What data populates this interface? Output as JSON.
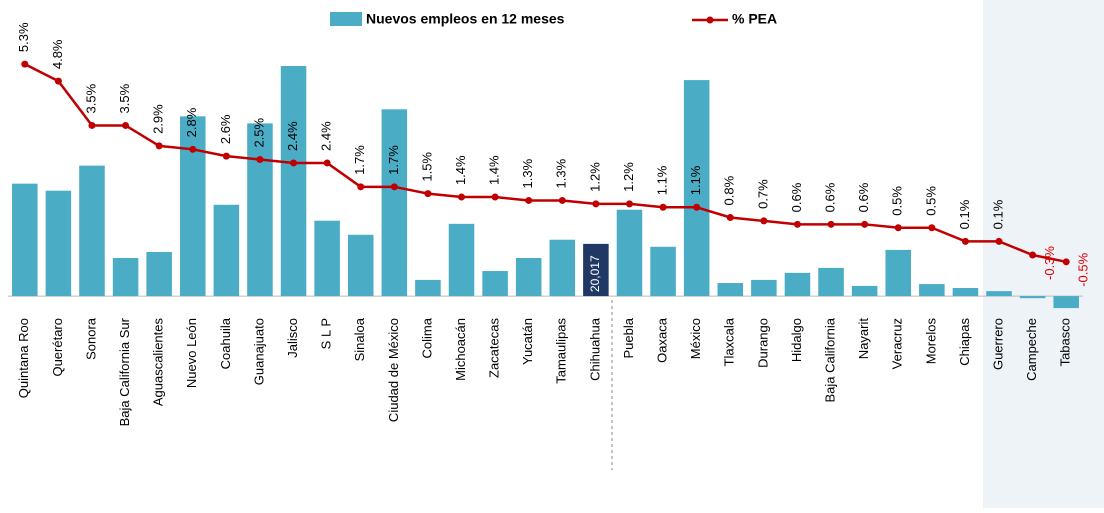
{
  "chart_data": {
    "type": "bar-line",
    "categories": [
      "Quintana Roo",
      "Querétaro",
      "Sonora",
      "Baja California Sur",
      "Aguascalientes",
      "Nuevo León",
      "Coahuila",
      "Guanajuato",
      "Jalisco",
      "S L P",
      "Sinaloa",
      "Ciudad de México",
      "Colima",
      "Michoacán",
      "Zacatecas",
      "Yucatán",
      "Tamaulipas",
      "Chihuahua",
      "Puebla",
      "Oaxaca",
      "México",
      "Tlaxcala",
      "Durango",
      "Hidalgo",
      "Baja California",
      "Nayarit",
      "Veracruz",
      "Morelos",
      "Chiapas",
      "Guerrero",
      "Campeche",
      "Tabasco"
    ],
    "series": [
      {
        "name": "Nuevos empleos en 12 meses",
        "color": "#4bacc6",
        "axis": "y",
        "values": [
          43100,
          40400,
          50000,
          14600,
          16900,
          68900,
          35000,
          66200,
          88200,
          28900,
          23500,
          71600,
          6200,
          27700,
          9600,
          14600,
          21600,
          20017,
          33100,
          18900,
          82800,
          5000,
          6200,
          8900,
          10800,
          3900,
          17700,
          4600,
          3100,
          1900,
          -800,
          -4600
        ],
        "value_labels": [
          null,
          null,
          null,
          null,
          null,
          null,
          null,
          null,
          null,
          null,
          null,
          null,
          null,
          null,
          null,
          null,
          null,
          "20,017",
          null,
          null,
          null,
          null,
          null,
          null,
          null,
          null,
          null,
          null,
          null,
          null,
          null,
          null
        ],
        "highlight_category": "Chihuahua",
        "highlight_color": "#1f3864"
      },
      {
        "name": "% PEA",
        "color": "#c00000",
        "axis": "y2",
        "values": [
          5.3,
          4.8,
          3.5,
          3.5,
          2.9,
          2.8,
          2.6,
          2.5,
          2.4,
          2.4,
          1.7,
          1.7,
          1.5,
          1.4,
          1.4,
          1.3,
          1.3,
          1.2,
          1.2,
          1.1,
          1.1,
          0.8,
          0.7,
          0.6,
          0.6,
          0.6,
          0.5,
          0.5,
          0.1,
          0.1,
          -0.3,
          -0.5
        ],
        "value_labels": [
          "5.3%",
          "4.8%",
          "3.5%",
          "3.5%",
          "2.9%",
          "2.8%",
          "2.6%",
          "2.5%",
          "2.4%",
          "2.4%",
          "1.7%",
          "1.7%",
          "1.5%",
          "1.4%",
          "1.4%",
          "1.3%",
          "1.3%",
          "1.2%",
          "1.2%",
          "1.1%",
          "1.1%",
          "0.8%",
          "0.7%",
          "0.6%",
          "0.6%",
          "0.6%",
          "0.5%",
          "0.5%",
          "0.1%",
          "0.1%",
          "-0.3%",
          "-0.5%"
        ]
      }
    ],
    "ylim": [
      -13000,
      102000
    ],
    "y2lim": [
      -2.5,
      6.3
    ]
  }
}
